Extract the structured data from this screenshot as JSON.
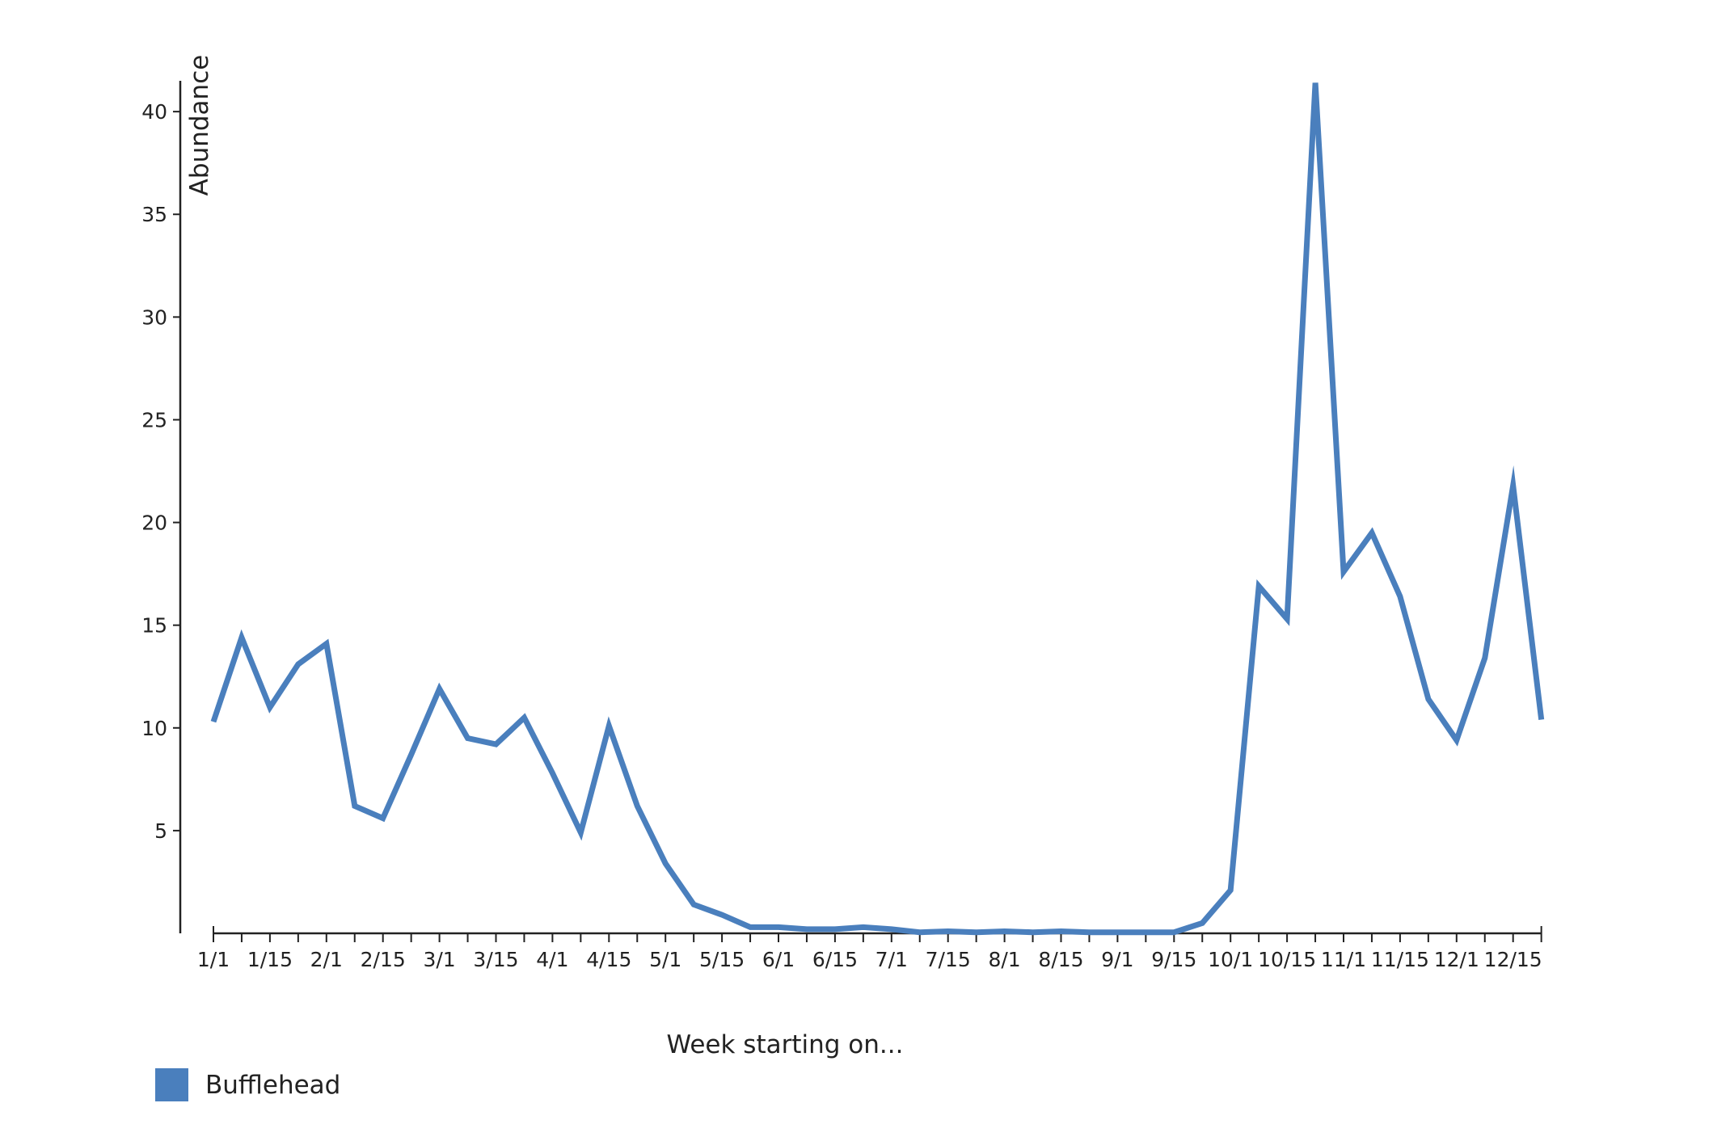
{
  "chart_data": {
    "type": "line",
    "title": "",
    "xlabel": "Week starting on...",
    "ylabel": "Abundance",
    "ylim": [
      0,
      41.5
    ],
    "y_ticks": [
      5,
      10,
      15,
      20,
      25,
      30,
      35,
      40
    ],
    "x_tick_labels": [
      "1/1",
      "1/15",
      "2/1",
      "2/15",
      "3/1",
      "3/15",
      "4/1",
      "4/15",
      "5/1",
      "5/15",
      "6/1",
      "6/15",
      "7/1",
      "7/15",
      "8/1",
      "8/15",
      "9/1",
      "9/15",
      "10/1",
      "10/15",
      "11/1",
      "11/15",
      "12/1",
      "12/15"
    ],
    "points_per_label": 2,
    "grid": false,
    "legend_position": "bottom-left",
    "series": [
      {
        "name": "Bufflehead",
        "color": "#4a7fbd",
        "values": [
          10.3,
          14.4,
          11.0,
          13.1,
          14.1,
          6.2,
          5.6,
          8.7,
          11.9,
          9.5,
          9.2,
          10.5,
          7.8,
          4.9,
          10.1,
          6.2,
          3.4,
          1.4,
          0.9,
          0.3,
          0.3,
          0.2,
          0.2,
          0.3,
          0.2,
          0.05,
          0.1,
          0.05,
          0.1,
          0.05,
          0.1,
          0.05,
          0.05,
          0.05,
          0.05,
          0.5,
          2.1,
          16.9,
          15.3,
          41.4,
          17.6,
          19.5,
          16.4,
          11.4,
          9.4,
          13.4,
          21.8,
          10.4
        ]
      }
    ]
  }
}
